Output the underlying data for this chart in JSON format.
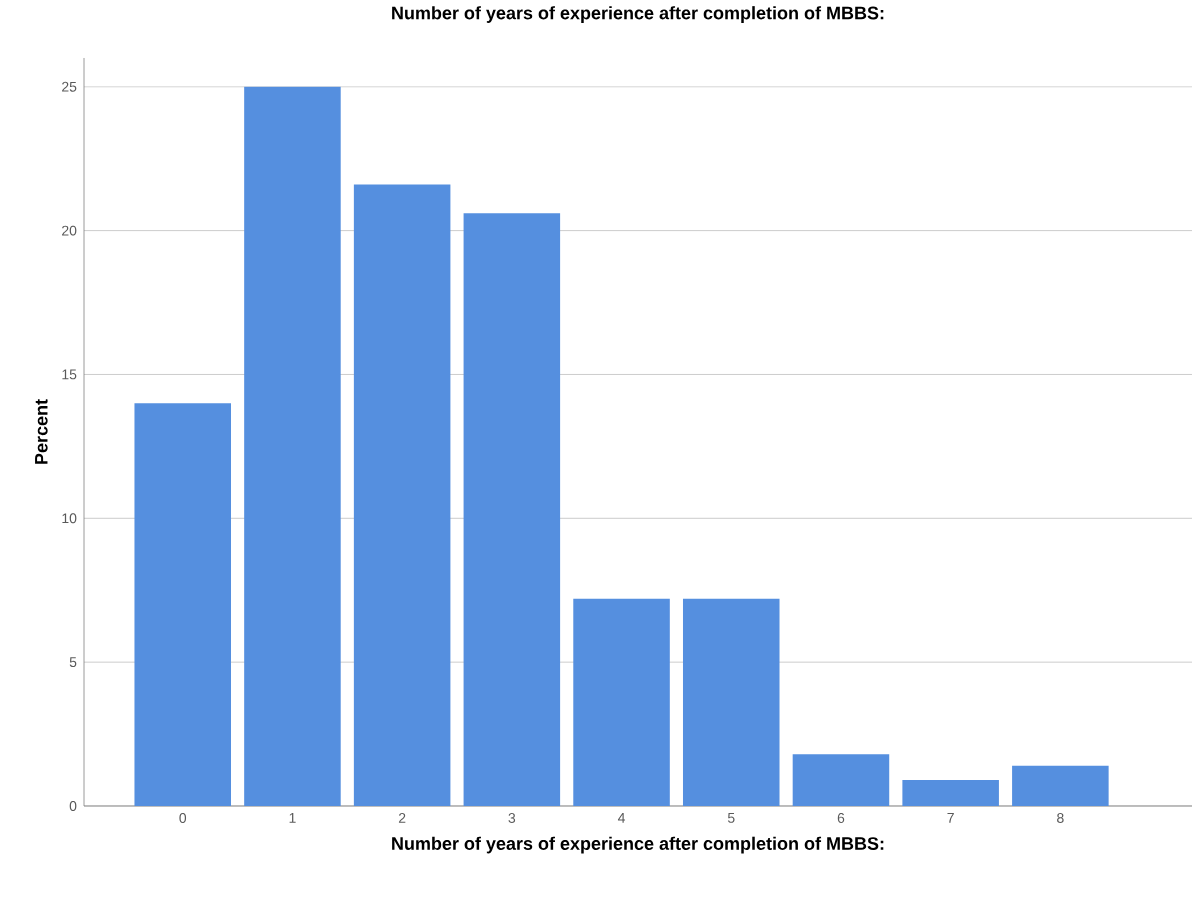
{
  "chart_data": {
    "type": "bar",
    "title": "Number of years of experience after completion of MBBS:",
    "xlabel": "Number of years of experience after completion of MBBS:",
    "ylabel": "Percent",
    "categories": [
      "0",
      "1",
      "2",
      "3",
      "4",
      "5",
      "6",
      "7",
      "8"
    ],
    "values": [
      14.0,
      25.0,
      21.6,
      20.6,
      7.2,
      7.2,
      1.8,
      0.9,
      1.4
    ],
    "color": "#558fdf",
    "ylim": [
      0,
      26
    ],
    "yticks": [
      0,
      5,
      10,
      15,
      20,
      25
    ],
    "grid": "y"
  }
}
